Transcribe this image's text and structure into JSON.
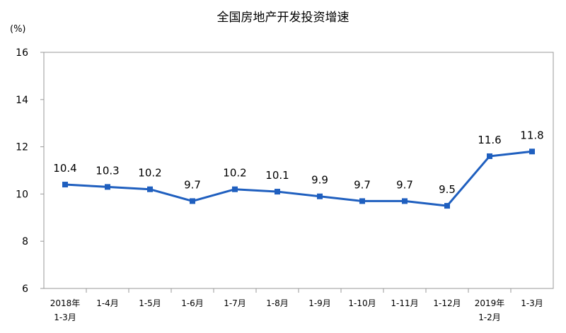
{
  "chart_data": {
    "type": "line",
    "title": "全国房地产开发投资增速",
    "ylabel": "(%)",
    "ylim": [
      6,
      16
    ],
    "yticks": [
      6,
      8,
      10,
      12,
      14,
      16
    ],
    "categories": [
      [
        "2018年",
        "1-3月"
      ],
      [
        "1-4月"
      ],
      [
        "1-5月"
      ],
      [
        "1-6月"
      ],
      [
        "1-7月"
      ],
      [
        "1-8月"
      ],
      [
        "1-9月"
      ],
      [
        "1-10月"
      ],
      [
        "1-11月"
      ],
      [
        "1-12月"
      ],
      [
        "2019年",
        "1-2月"
      ],
      [
        "1-3月"
      ]
    ],
    "series": [
      {
        "values": [
          10.4,
          10.3,
          10.2,
          9.7,
          10.2,
          10.1,
          9.9,
          9.7,
          9.7,
          9.5,
          11.6,
          11.8
        ],
        "color": "#1f5fbf"
      }
    ],
    "grid": false,
    "legend": "none"
  }
}
